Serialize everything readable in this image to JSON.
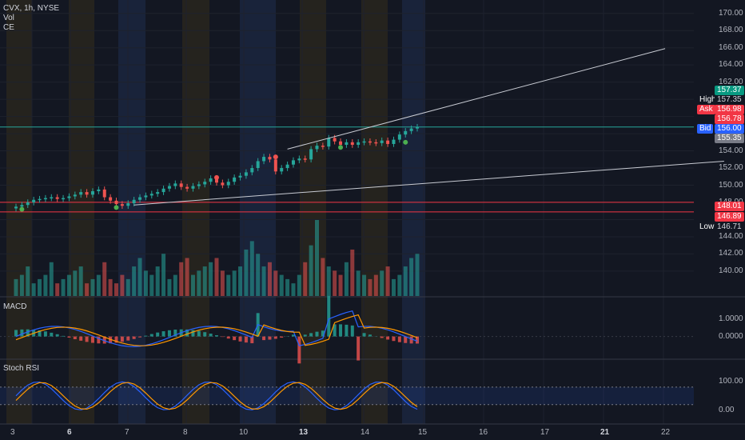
{
  "legend": {
    "symbol": "CVX, 1h, NYSE",
    "vol": "Vol",
    "ce": "CE"
  },
  "panes": {
    "macd": "MACD",
    "stoch": "Stoch RSI"
  },
  "price_axis": {
    "ticks": [
      "170.00",
      "168.00",
      "166.00",
      "164.00",
      "162.00",
      "160.00",
      "158.00",
      "154.00",
      "152.00",
      "150.00",
      "148.00",
      "144.00",
      "142.00",
      "140.00"
    ],
    "tick_values": [
      170,
      168,
      166,
      164,
      162,
      160,
      158,
      154,
      152,
      150,
      148,
      144,
      142,
      140
    ]
  },
  "macd_axis": {
    "ticks": [
      "1.0000",
      "0.0000"
    ],
    "tick_values": [
      1,
      0
    ]
  },
  "stoch_axis": {
    "ticks": [
      "100.00",
      "0.00"
    ],
    "tick_values": [
      100,
      0
    ]
  },
  "price_tags": {
    "last": {
      "value": "157.37",
      "color": "#089981"
    },
    "high": {
      "label": "High",
      "value": "157.35",
      "color": "#2962ff"
    },
    "ask": {
      "label": "Ask",
      "value": "156.98",
      "color": "#f23645"
    },
    "level1": {
      "value": "156.78",
      "color": "#f23645"
    },
    "bid": {
      "label": "Bid",
      "value": "156.00",
      "color": "#2962ff"
    },
    "level2": {
      "value": "155.35",
      "color": "#787b86"
    },
    "level3": {
      "value": "148.01",
      "color": "#f23645"
    },
    "level4": {
      "value": "146.89",
      "color": "#f23645"
    },
    "low": {
      "label": "Low",
      "value": "146.71",
      "color": "#2962ff"
    }
  },
  "time_axis": {
    "labels": [
      {
        "text": "3",
        "bold": false
      },
      {
        "text": "6",
        "bold": true
      },
      {
        "text": "7",
        "bold": false
      },
      {
        "text": "8",
        "bold": false
      },
      {
        "text": "10",
        "bold": false
      },
      {
        "text": "13",
        "bold": true
      },
      {
        "text": "14",
        "bold": false
      },
      {
        "text": "15",
        "bold": false
      },
      {
        "text": "16",
        "bold": false
      },
      {
        "text": "17",
        "bold": false
      },
      {
        "text": "21",
        "bold": true
      },
      {
        "text": "22",
        "bold": false
      }
    ]
  },
  "colors": {
    "up": "#26a69a",
    "down": "#ef5350",
    "bg": "#131722",
    "grid": "#1e222d",
    "macd": "#2962ff",
    "signal": "#ff9800"
  },
  "chart_data": {
    "type": "candlestick",
    "symbol": "CVX",
    "interval": "1h",
    "exchange": "NYSE",
    "ylim": [
      138.5,
      171
    ],
    "closes": [
      147.5,
      147.7,
      148.0,
      148.3,
      148.4,
      148.5,
      148.6,
      148.4,
      148.5,
      148.7,
      148.9,
      149.2,
      148.9,
      149.3,
      149.5,
      148.6,
      148.2,
      147.8,
      147.6,
      147.9,
      148.3,
      148.6,
      148.8,
      149.0,
      149.2,
      149.6,
      149.9,
      150.2,
      149.8,
      149.6,
      149.9,
      150.1,
      150.4,
      150.8,
      150.3,
      150.0,
      150.4,
      150.9,
      151.1,
      151.5,
      152.0,
      152.8,
      153.3,
      153.0,
      151.6,
      152.0,
      152.4,
      152.9,
      153.1,
      153.0,
      154.2,
      154.6,
      154.5,
      155.5,
      155.1,
      154.7,
      155.0,
      154.7,
      155.0,
      155.1,
      155.0,
      154.9,
      155.2,
      154.8,
      155.3,
      155.9,
      156.3,
      156.6,
      156.78
    ],
    "level_lines": [
      156.78,
      148.01,
      146.89
    ],
    "trend_lines": [
      {
        "from": [
          46,
          154.2
        ],
        "to": [
          110,
          165.9
        ]
      },
      {
        "from": [
          20,
          147.7
        ],
        "to": [
          120,
          152.8
        ]
      }
    ],
    "volume": [
      4,
      5,
      7,
      3,
      4,
      5,
      8,
      3,
      4,
      5,
      6,
      7,
      3,
      4,
      5,
      8,
      4,
      3,
      5,
      4,
      7,
      9,
      6,
      5,
      7,
      10,
      4,
      5,
      8,
      9,
      5,
      6,
      7,
      8,
      9,
      6,
      5,
      6,
      7,
      11,
      13,
      10,
      7,
      8,
      6,
      5,
      4,
      3,
      5,
      8,
      12,
      18,
      9,
      7,
      6,
      5,
      8,
      11,
      6,
      5,
      4,
      5,
      6,
      7,
      4,
      5,
      7,
      9,
      10
    ],
    "macd": {
      "ylim": [
        -1.2,
        2.2
      ]
    },
    "stoch_rsi": {
      "ylim": [
        -30,
        140
      ],
      "bands": [
        80,
        20
      ]
    }
  }
}
